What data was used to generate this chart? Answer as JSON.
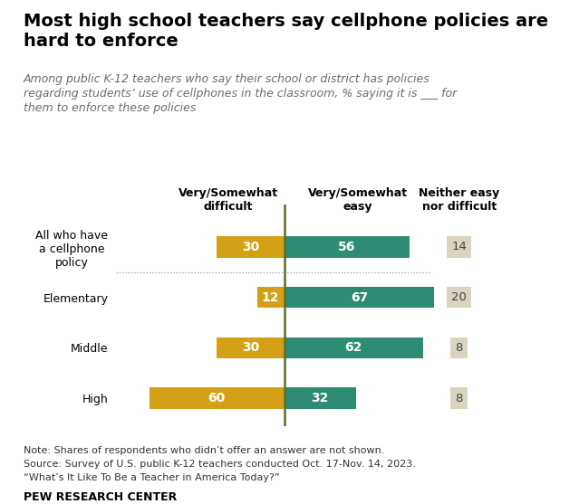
{
  "title": "Most high school teachers say cellphone policies are\nhard to enforce",
  "subtitle": "Among public K-12 teachers who say their school or district has policies\nregarding students’ use of cellphones in the classroom, % saying it is ___ for\nthem to enforce these policies",
  "categories": [
    "All who have\na cellphone\npolicy",
    "Elementary",
    "Middle",
    "High"
  ],
  "difficult": [
    30,
    12,
    30,
    60
  ],
  "easy": [
    56,
    67,
    62,
    32
  ],
  "neither": [
    14,
    20,
    8,
    8
  ],
  "color_difficult": "#D4A017",
  "color_easy": "#2E8B74",
  "color_neither": "#D9D4C0",
  "header_difficult": "Very/Somewhat\ndifficult",
  "header_easy": "Very/Somewhat\neasy",
  "header_neither": "Neither easy\nnor difficult",
  "note_line1": "Note: Shares of respondents who didn’t offer an answer are not shown.",
  "note_line2": "Source: Survey of U.S. public K-12 teachers conducted Oct. 17-Nov. 14, 2023.",
  "note_line3": "“What’s It Like To Be a Teacher in America Today?”",
  "footer": "PEW RESEARCH CENTER",
  "xlim_left": -75,
  "xlim_right": 85,
  "center_line_color": "#5A6E2A",
  "divider_color": "#999999",
  "label_fontsize": 10,
  "header_fontsize": 9,
  "ytick_fontsize": 9,
  "note_fontsize": 8,
  "title_fontsize": 14,
  "subtitle_fontsize": 9
}
